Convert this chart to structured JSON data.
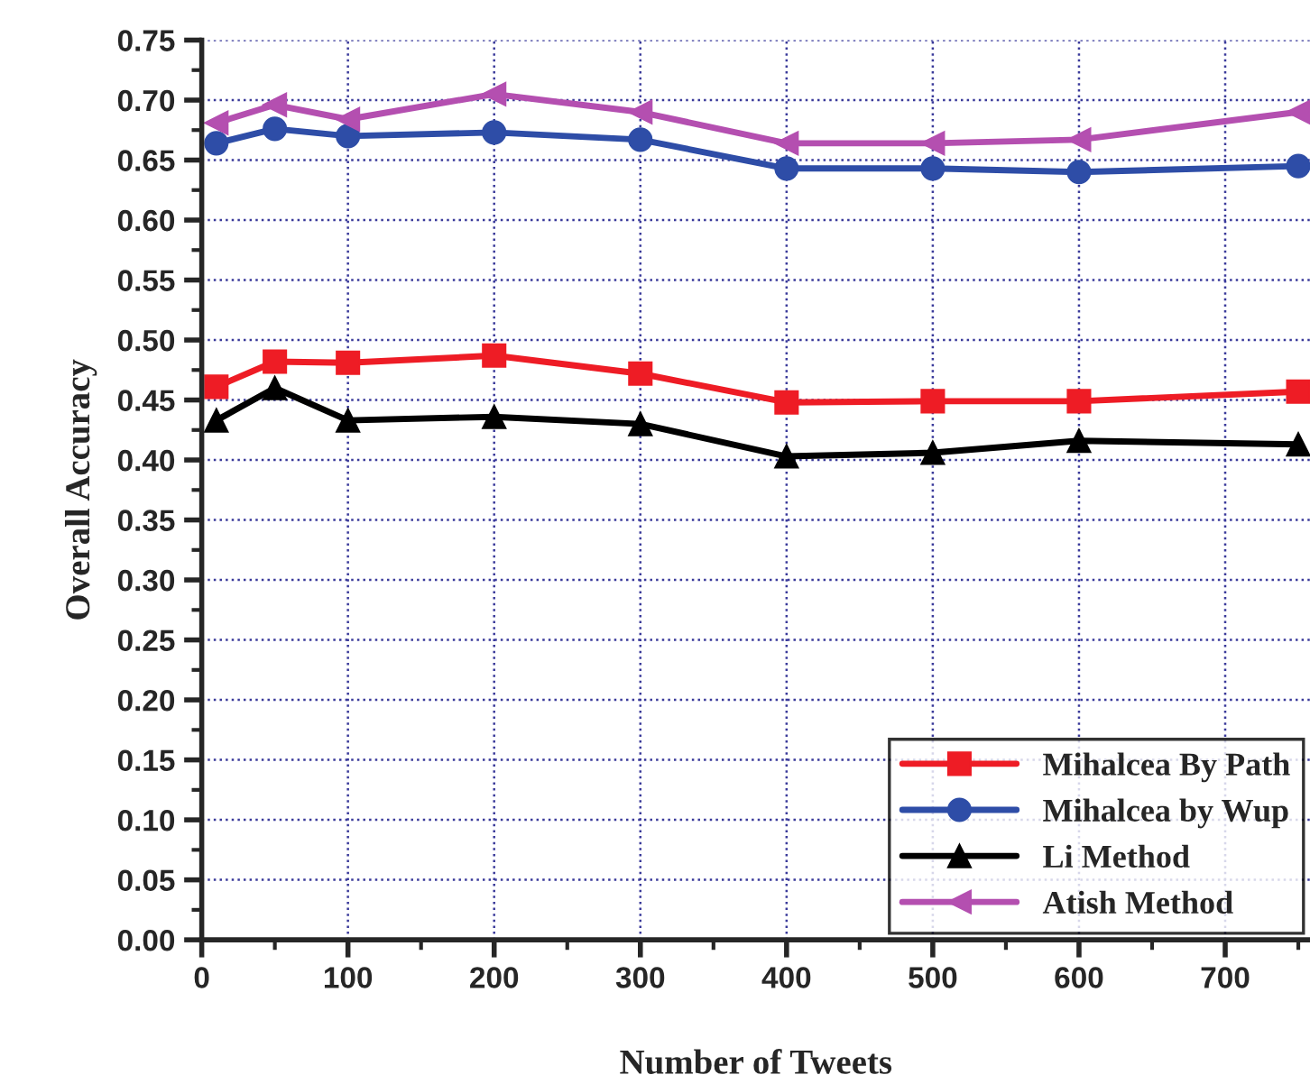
{
  "chart_data": {
    "type": "line",
    "xlabel": "Number of Tweets",
    "ylabel": "Overall Accuracy",
    "x": [
      10,
      50,
      100,
      200,
      300,
      400,
      500,
      600,
      750
    ],
    "series": [
      {
        "name": "Mihalcea By Path",
        "color": "#ee1c25",
        "marker": "square",
        "values": [
          0.461,
          0.482,
          0.481,
          0.487,
          0.472,
          0.448,
          0.449,
          0.449,
          0.457
        ]
      },
      {
        "name": "Mihalcea by Wup",
        "color": "#2e4da7",
        "marker": "circle",
        "values": [
          0.664,
          0.676,
          0.67,
          0.673,
          0.667,
          0.643,
          0.643,
          0.64,
          0.645
        ]
      },
      {
        "name": "Li Method",
        "color": "#000000",
        "marker": "triangle",
        "values": [
          0.433,
          0.46,
          0.433,
          0.436,
          0.43,
          0.403,
          0.406,
          0.416,
          0.413
        ]
      },
      {
        "name": "Atish Method",
        "color": "#b44fb0",
        "marker": "triangle_left",
        "values": [
          0.681,
          0.696,
          0.684,
          0.705,
          0.69,
          0.664,
          0.664,
          0.667,
          0.69
        ]
      }
    ],
    "xlim": [
      0,
      758
    ],
    "xticks": [
      0,
      100,
      200,
      300,
      400,
      500,
      600,
      700
    ],
    "ylim": [
      0,
      0.75
    ],
    "yticks": [
      {
        "value": 0,
        "label": "0.00"
      },
      {
        "value": 0.05,
        "label": "0.05"
      },
      {
        "value": 0.1,
        "label": "0.10"
      },
      {
        "value": 0.15,
        "label": "0.15"
      },
      {
        "value": 0.2,
        "label": "0.20"
      },
      {
        "value": 0.25,
        "label": "0.25"
      },
      {
        "value": 0.3,
        "label": "0.30"
      },
      {
        "value": 0.35,
        "label": "0.35"
      },
      {
        "value": 0.4,
        "label": "0.40"
      },
      {
        "value": 0.45,
        "label": "0.45"
      },
      {
        "value": 0.5,
        "label": "0.50"
      },
      {
        "value": 0.55,
        "label": "0.55"
      },
      {
        "value": 0.6,
        "label": "0.60"
      },
      {
        "value": 0.65,
        "label": "0.65"
      },
      {
        "value": 0.7,
        "label": "0.70"
      },
      {
        "value": 0.75,
        "label": "0.75"
      }
    ],
    "grid": true,
    "legend": "bottom right",
    "line_style": "solid"
  }
}
